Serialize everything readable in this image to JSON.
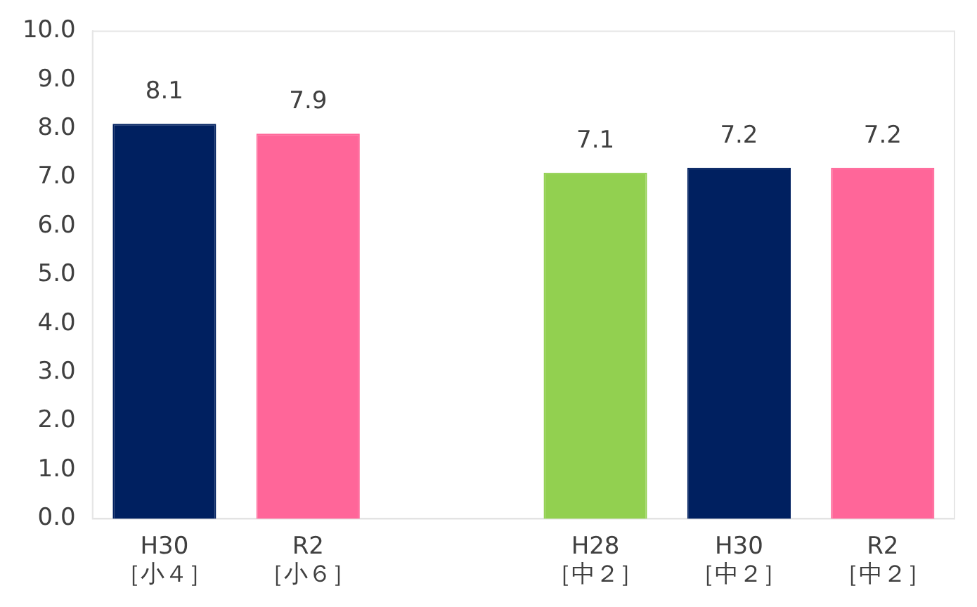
{
  "chart_data": {
    "type": "bar",
    "categories": [
      "H30\n［小４］",
      "R2\n［小６］",
      null,
      "H28\n［中２］",
      "H30\n［中２］",
      "R2\n［中２］"
    ],
    "values": [
      8.1,
      7.9,
      null,
      7.1,
      7.2,
      7.2
    ],
    "colors": [
      "#002060",
      "#ff6699",
      null,
      "#92d050",
      "#002060",
      "#ff6699"
    ],
    "ylim": [
      0,
      10
    ],
    "yticks": [
      {
        "value": 0,
        "label": "0.0"
      },
      {
        "value": 1,
        "label": "1.0"
      },
      {
        "value": 2,
        "label": "2.0"
      },
      {
        "value": 3,
        "label": "3.0"
      },
      {
        "value": 4,
        "label": "4.0"
      },
      {
        "value": 5,
        "label": "5.0"
      },
      {
        "value": 6,
        "label": "6.0"
      },
      {
        "value": 7,
        "label": "7.0"
      },
      {
        "value": 8,
        "label": "8.0"
      },
      {
        "value": 9,
        "label": "9.0"
      },
      {
        "value": 10,
        "label": "10.0"
      }
    ],
    "data_labels": true,
    "grid": false,
    "legend": false
  }
}
